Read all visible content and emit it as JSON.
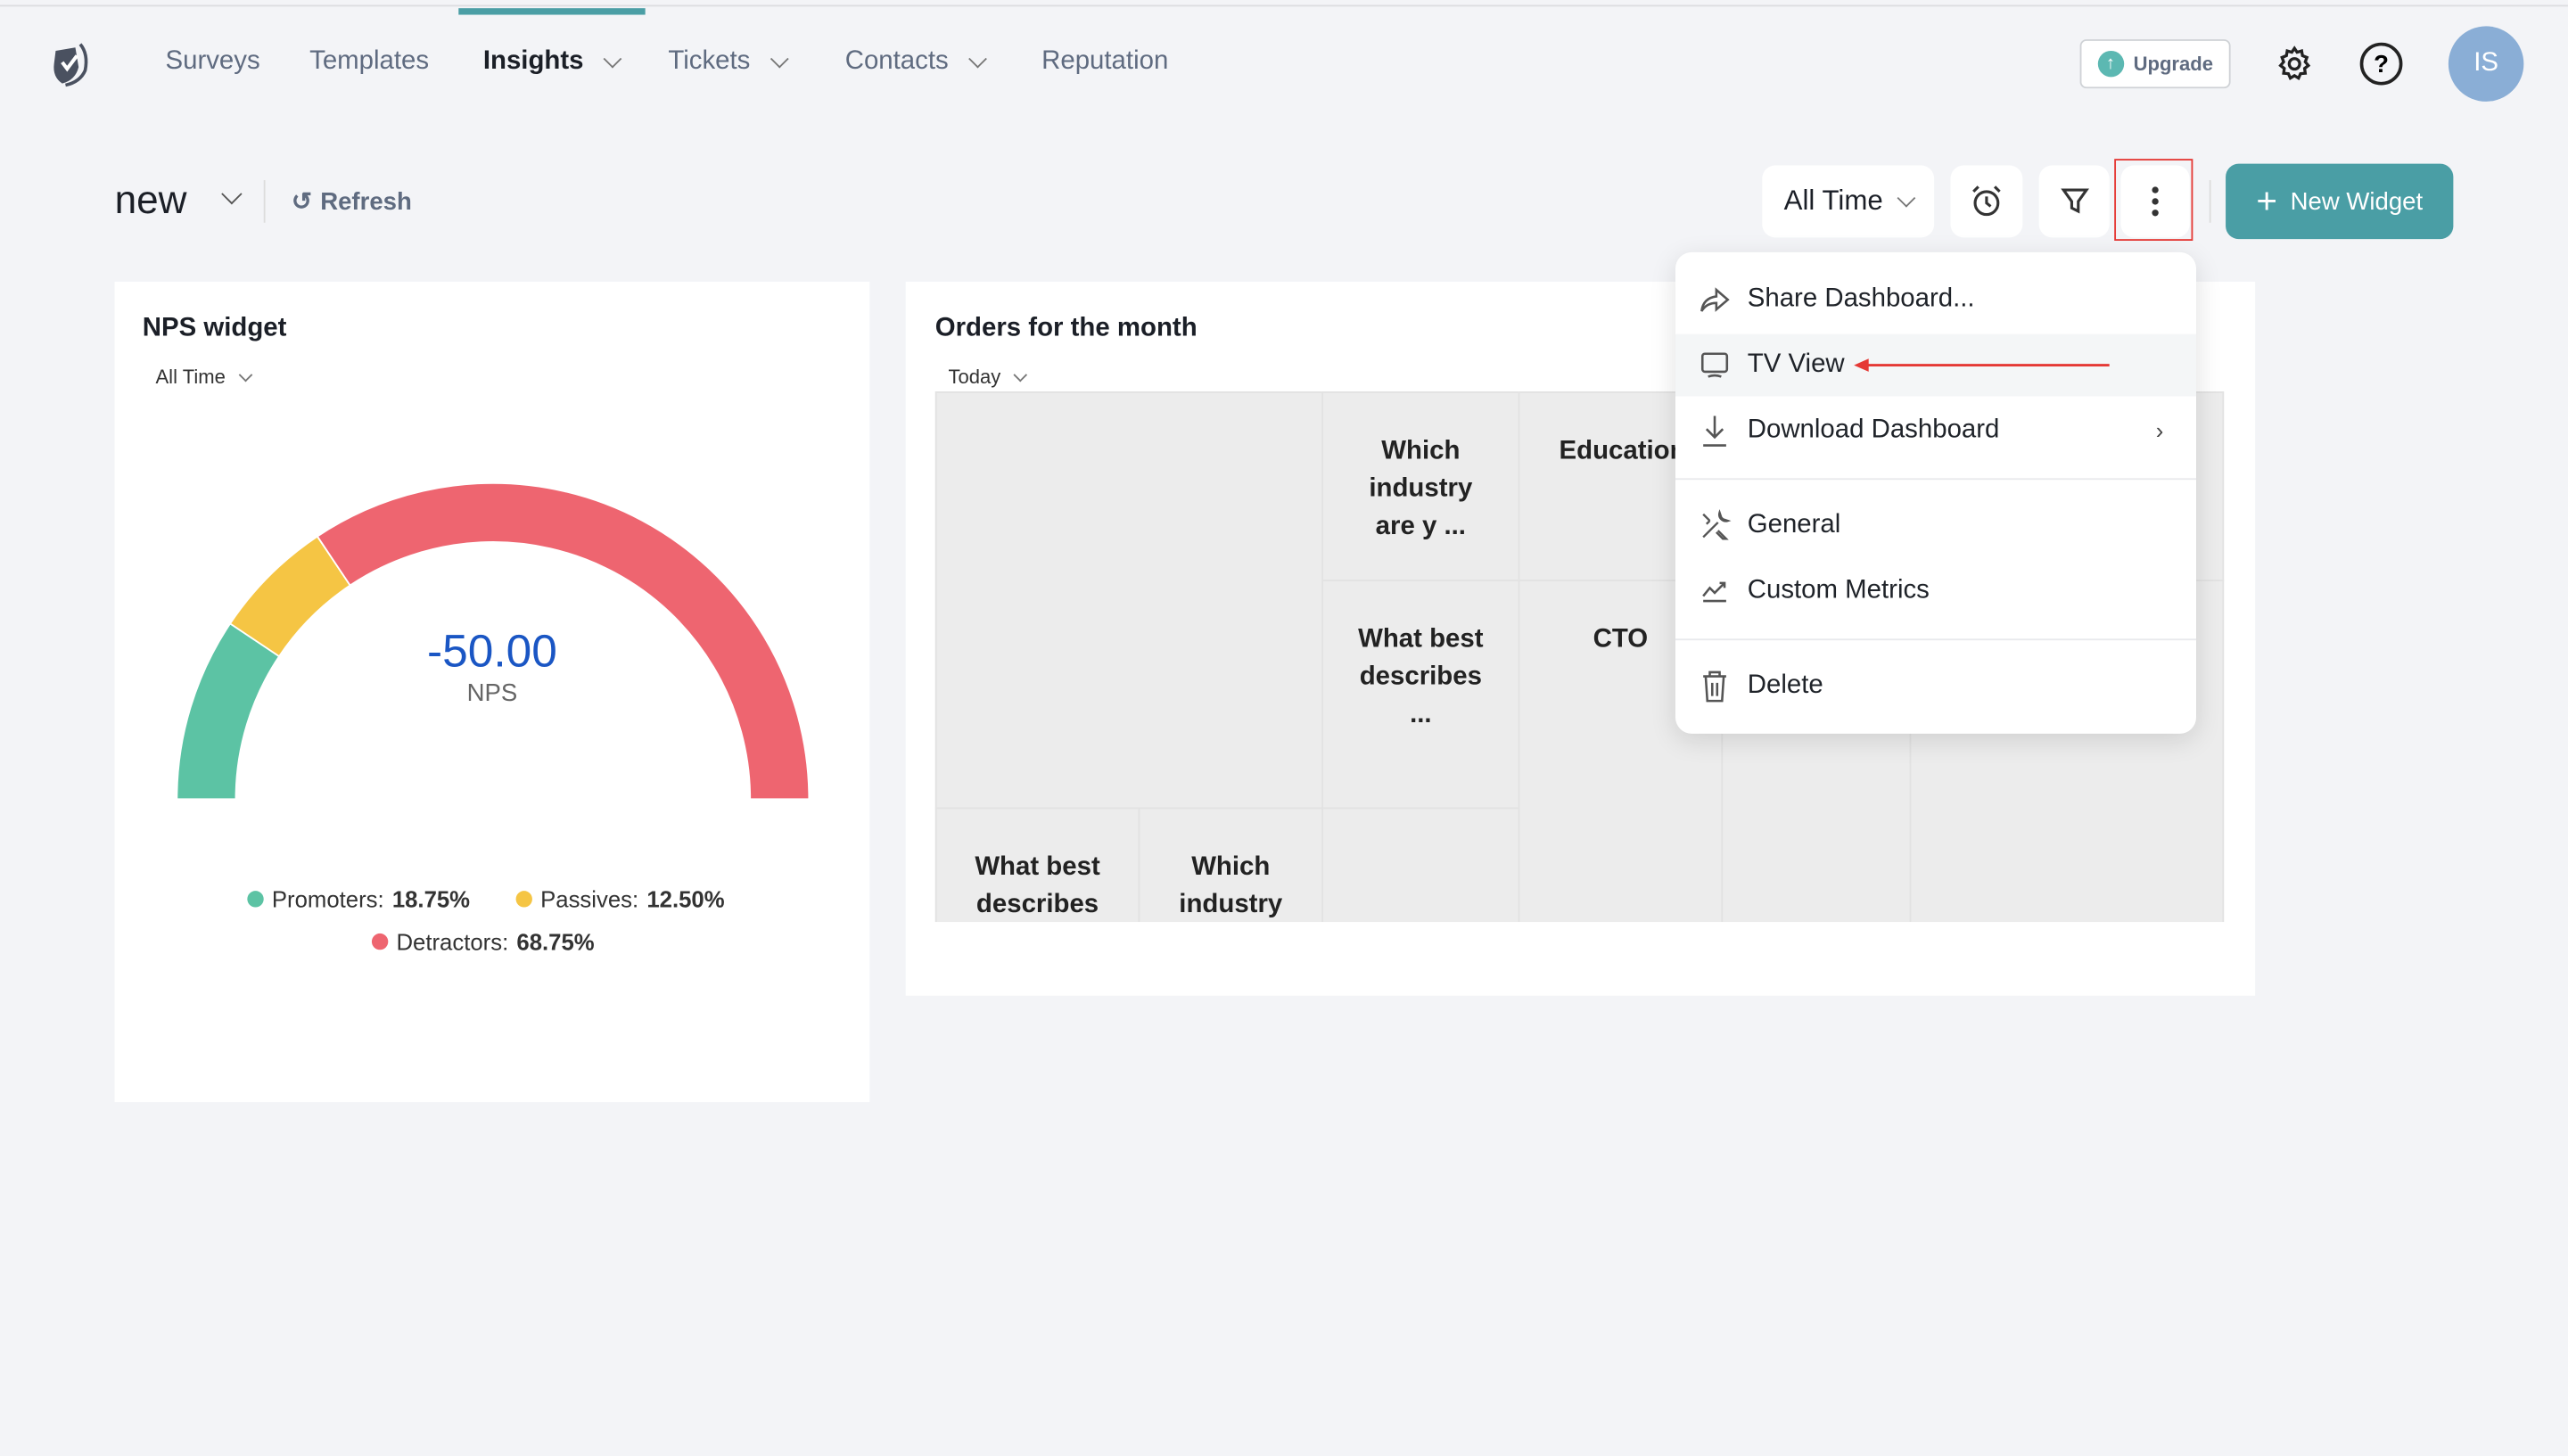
{
  "nav": {
    "items": [
      {
        "label": "Surveys",
        "active": false,
        "dropdown": false
      },
      {
        "label": "Templates",
        "active": false,
        "dropdown": false
      },
      {
        "label": "Insights",
        "active": true,
        "dropdown": true
      },
      {
        "label": "Tickets",
        "active": false,
        "dropdown": true
      },
      {
        "label": "Contacts",
        "active": false,
        "dropdown": true
      },
      {
        "label": "Reputation",
        "active": false,
        "dropdown": false
      }
    ],
    "upgrade": "Upgrade",
    "avatar": "IS"
  },
  "toolbar": {
    "dashboard_name": "new",
    "refresh": "Refresh",
    "time_range": "All Time",
    "new_widget": "New Widget"
  },
  "nps_widget": {
    "title": "NPS widget",
    "filter": "All Time",
    "score": "-50.00",
    "score_label": "NPS",
    "promoters_label": "Promoters:",
    "promoters": "18.75%",
    "passives_label": "Passives:",
    "passives": "12.50%",
    "detractors_label": "Detractors:",
    "detractors": "68.75%",
    "promoters_pct": 18.75,
    "passives_pct": 12.5,
    "detractors_pct": 68.75,
    "colors": {
      "promoters": "#5cc3a4",
      "passives": "#f5c544",
      "detractors": "#ee6570"
    }
  },
  "orders_widget": {
    "title": "Orders for the month",
    "filter": "Today",
    "cells": [
      "Which industry are y ...",
      "Education",
      "What best describes ...",
      "CTO",
      "What best describes",
      "Which industry"
    ]
  },
  "menu": {
    "items": [
      "Share Dashboard...",
      "TV View",
      "Download Dashboard",
      "General",
      "Custom Metrics",
      "Delete"
    ]
  },
  "colors": {
    "accent": "#4a9ea5",
    "highlight": "#e53935"
  }
}
